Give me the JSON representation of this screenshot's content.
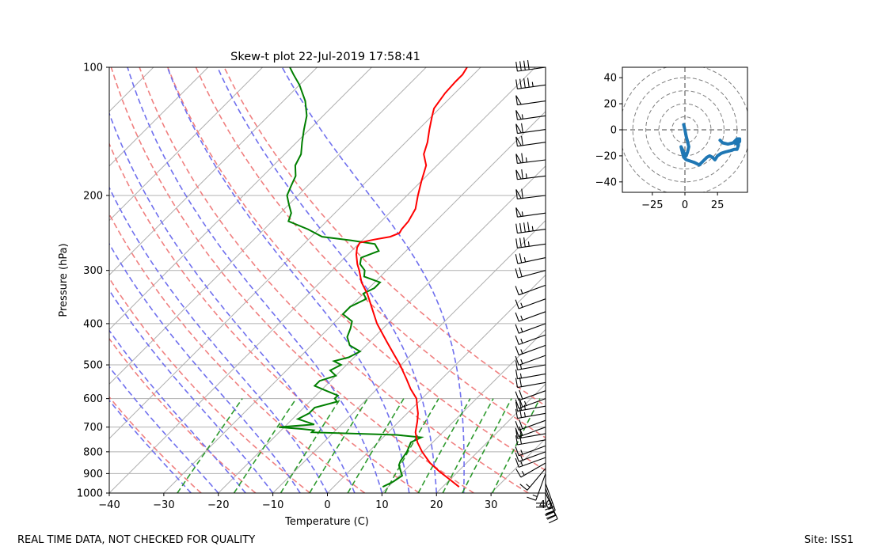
{
  "footer": {
    "left_note": "REAL TIME DATA, NOT CHECKED FOR QUALITY",
    "right_note": "Site: ISS1"
  },
  "chart_data": [
    {
      "type": "skew-t",
      "title": "Skew-t plot 22-Jul-2019 17:58:41",
      "xlabel": "Temperature (C)",
      "ylabel": "Pressure (hPa)",
      "xlim": [
        -40,
        40
      ],
      "ylim": [
        1000,
        100
      ],
      "y_scale": "log",
      "x_ticks": [
        -40,
        -30,
        -20,
        -10,
        0,
        10,
        20,
        30,
        40
      ],
      "y_ticks": [
        100,
        200,
        300,
        400,
        500,
        600,
        700,
        800,
        900,
        1000
      ],
      "grid": true,
      "colors": {
        "temperature": "#ff0000",
        "dewpoint": "#007f00",
        "dry_adiabats": "#f08080",
        "moist_adiabats": "#7070ee",
        "mixing_ratio": "#2e9a2e"
      },
      "series": [
        {
          "role": "temperature",
          "p": [
            967,
            930,
            890,
            850,
            800,
            760,
            720,
            700,
            680,
            650,
            620,
            600,
            570,
            540,
            500,
            470,
            440,
            400,
            370,
            340,
            320,
            300,
            290,
            275,
            265,
            258,
            254,
            250,
            245,
            240,
            230,
            215,
            200,
            185,
            170,
            160,
            150,
            140,
            130,
            125,
            115,
            108,
            104,
            100
          ],
          "t": [
            23.0,
            20.0,
            16.6,
            13.3,
            9.8,
            7.2,
            5.0,
            4.2,
            3.4,
            2.0,
            0.2,
            -1.0,
            -3.8,
            -6.4,
            -10.2,
            -13.5,
            -17.0,
            -22.0,
            -25.5,
            -29.3,
            -32.4,
            -35.0,
            -36.5,
            -38.5,
            -39.6,
            -40.0,
            -38.0,
            -35.5,
            -34.5,
            -34.8,
            -35.0,
            -36.0,
            -38.0,
            -40.0,
            -42.0,
            -44.5,
            -46.0,
            -48.0,
            -50.0,
            -51.0,
            -51.8,
            -52.0,
            -52.0,
            -52.5
          ]
        },
        {
          "role": "dewpoint",
          "p": [
            967,
            940,
            910,
            890,
            860,
            840,
            800,
            760,
            740,
            730,
            720,
            712,
            706,
            700,
            690,
            670,
            650,
            630,
            610,
            600,
            590,
            575,
            560,
            545,
            530,
            515,
            500,
            490,
            480,
            465,
            450,
            430,
            410,
            395,
            380,
            365,
            350,
            340,
            330,
            320,
            310,
            300,
            290,
            280,
            270,
            260,
            255,
            250,
            240,
            230,
            220,
            210,
            200,
            190,
            180,
            170,
            160,
            150,
            140,
            130,
            120,
            110,
            104,
            100
          ],
          "td": [
            9.0,
            10.0,
            10.5,
            9.5,
            8.0,
            7.5,
            7.0,
            6.0,
            7.0,
            2.0,
            -14.0,
            -14.0,
            -17.0,
            -21.0,
            -15.0,
            -19.0,
            -18.0,
            -18.0,
            -15.0,
            -16.0,
            -16.0,
            -19.0,
            -22.0,
            -22.0,
            -20.0,
            -22.0,
            -21.0,
            -23.0,
            -21.0,
            -20.0,
            -23.0,
            -25.0,
            -26.0,
            -27.0,
            -30.0,
            -30.0,
            -28.5,
            -30.0,
            -29.0,
            -29.0,
            -33.0,
            -34.0,
            -36.0,
            -37.0,
            -35.0,
            -37.0,
            -42.0,
            -48.0,
            -52.0,
            -57.0,
            -58.0,
            -60.0,
            -62.0,
            -63.0,
            -64.0,
            -66.0,
            -67.0,
            -69.0,
            -71.0,
            -73.0,
            -76.0,
            -80.0,
            -83.0,
            -85.0
          ]
        }
      ],
      "dry_adiabats_theta_K": [
        250,
        260,
        270,
        280,
        290,
        300,
        310,
        320,
        330,
        340
      ],
      "moist_adiabats_C": [
        -25,
        -20,
        -15,
        -10,
        -5,
        0,
        5,
        10,
        15,
        20,
        25
      ],
      "mixing_ratio_gkg": [
        0.4,
        1,
        2,
        3,
        5,
        8,
        12,
        16,
        20,
        28
      ],
      "wind_barbs": {
        "p": [
          1000,
          975,
          950,
          925,
          900,
          875,
          850,
          825,
          800,
          775,
          750,
          725,
          700,
          675,
          650,
          625,
          600,
          575,
          550,
          525,
          500,
          475,
          450,
          425,
          400,
          375,
          350,
          325,
          300,
          280,
          260,
          240,
          220,
          200,
          180,
          165,
          150,
          140,
          130,
          120,
          110,
          100
        ],
        "speed_kt": [
          30,
          25,
          25,
          20,
          15,
          15,
          15,
          15,
          15,
          15,
          20,
          20,
          20,
          20,
          25,
          25,
          25,
          20,
          20,
          15,
          15,
          15,
          15,
          15,
          15,
          15,
          15,
          15,
          20,
          25,
          35,
          45,
          55,
          60,
          65,
          65,
          60,
          60,
          55,
          50,
          45,
          40
        ],
        "direction_deg": [
          155,
          160,
          160,
          180,
          200,
          220,
          240,
          250,
          250,
          250,
          260,
          260,
          250,
          250,
          260,
          260,
          250,
          250,
          260,
          260,
          260,
          250,
          250,
          250,
          250,
          250,
          250,
          250,
          255,
          258,
          262,
          262,
          262,
          263,
          263,
          263,
          262,
          262,
          262,
          262,
          262,
          262
        ]
      }
    },
    {
      "type": "hodograph",
      "xlim": [
        -48,
        48
      ],
      "ylim": [
        -48,
        48
      ],
      "x_ticks": [
        -25,
        0,
        25
      ],
      "y_ticks": [
        40,
        20,
        0,
        -20,
        -40
      ],
      "ring_radii": [
        10,
        20,
        30,
        40,
        50
      ],
      "color": "#1f77b4",
      "u": [
        -1,
        0,
        1,
        2,
        3,
        2,
        1,
        0,
        -2,
        -3,
        -2,
        -1,
        1,
        4,
        7,
        11,
        14,
        17,
        19,
        21,
        23,
        25,
        28,
        31,
        35,
        38,
        40,
        41,
        41,
        40,
        39,
        38,
        40,
        42,
        42,
        40,
        37,
        33,
        29,
        27
      ],
      "v": [
        4,
        0,
        -5,
        -9,
        -13,
        -17,
        -20,
        -19,
        -15,
        -13,
        -17,
        -21,
        -23,
        -24,
        -25,
        -27,
        -24,
        -21,
        -20,
        -21,
        -23,
        -20,
        -18,
        -17,
        -16,
        -15,
        -15,
        -12,
        -9,
        -8,
        -8,
        -10,
        -11,
        -9,
        -7,
        -7,
        -10,
        -11,
        -10,
        -8
      ]
    }
  ]
}
